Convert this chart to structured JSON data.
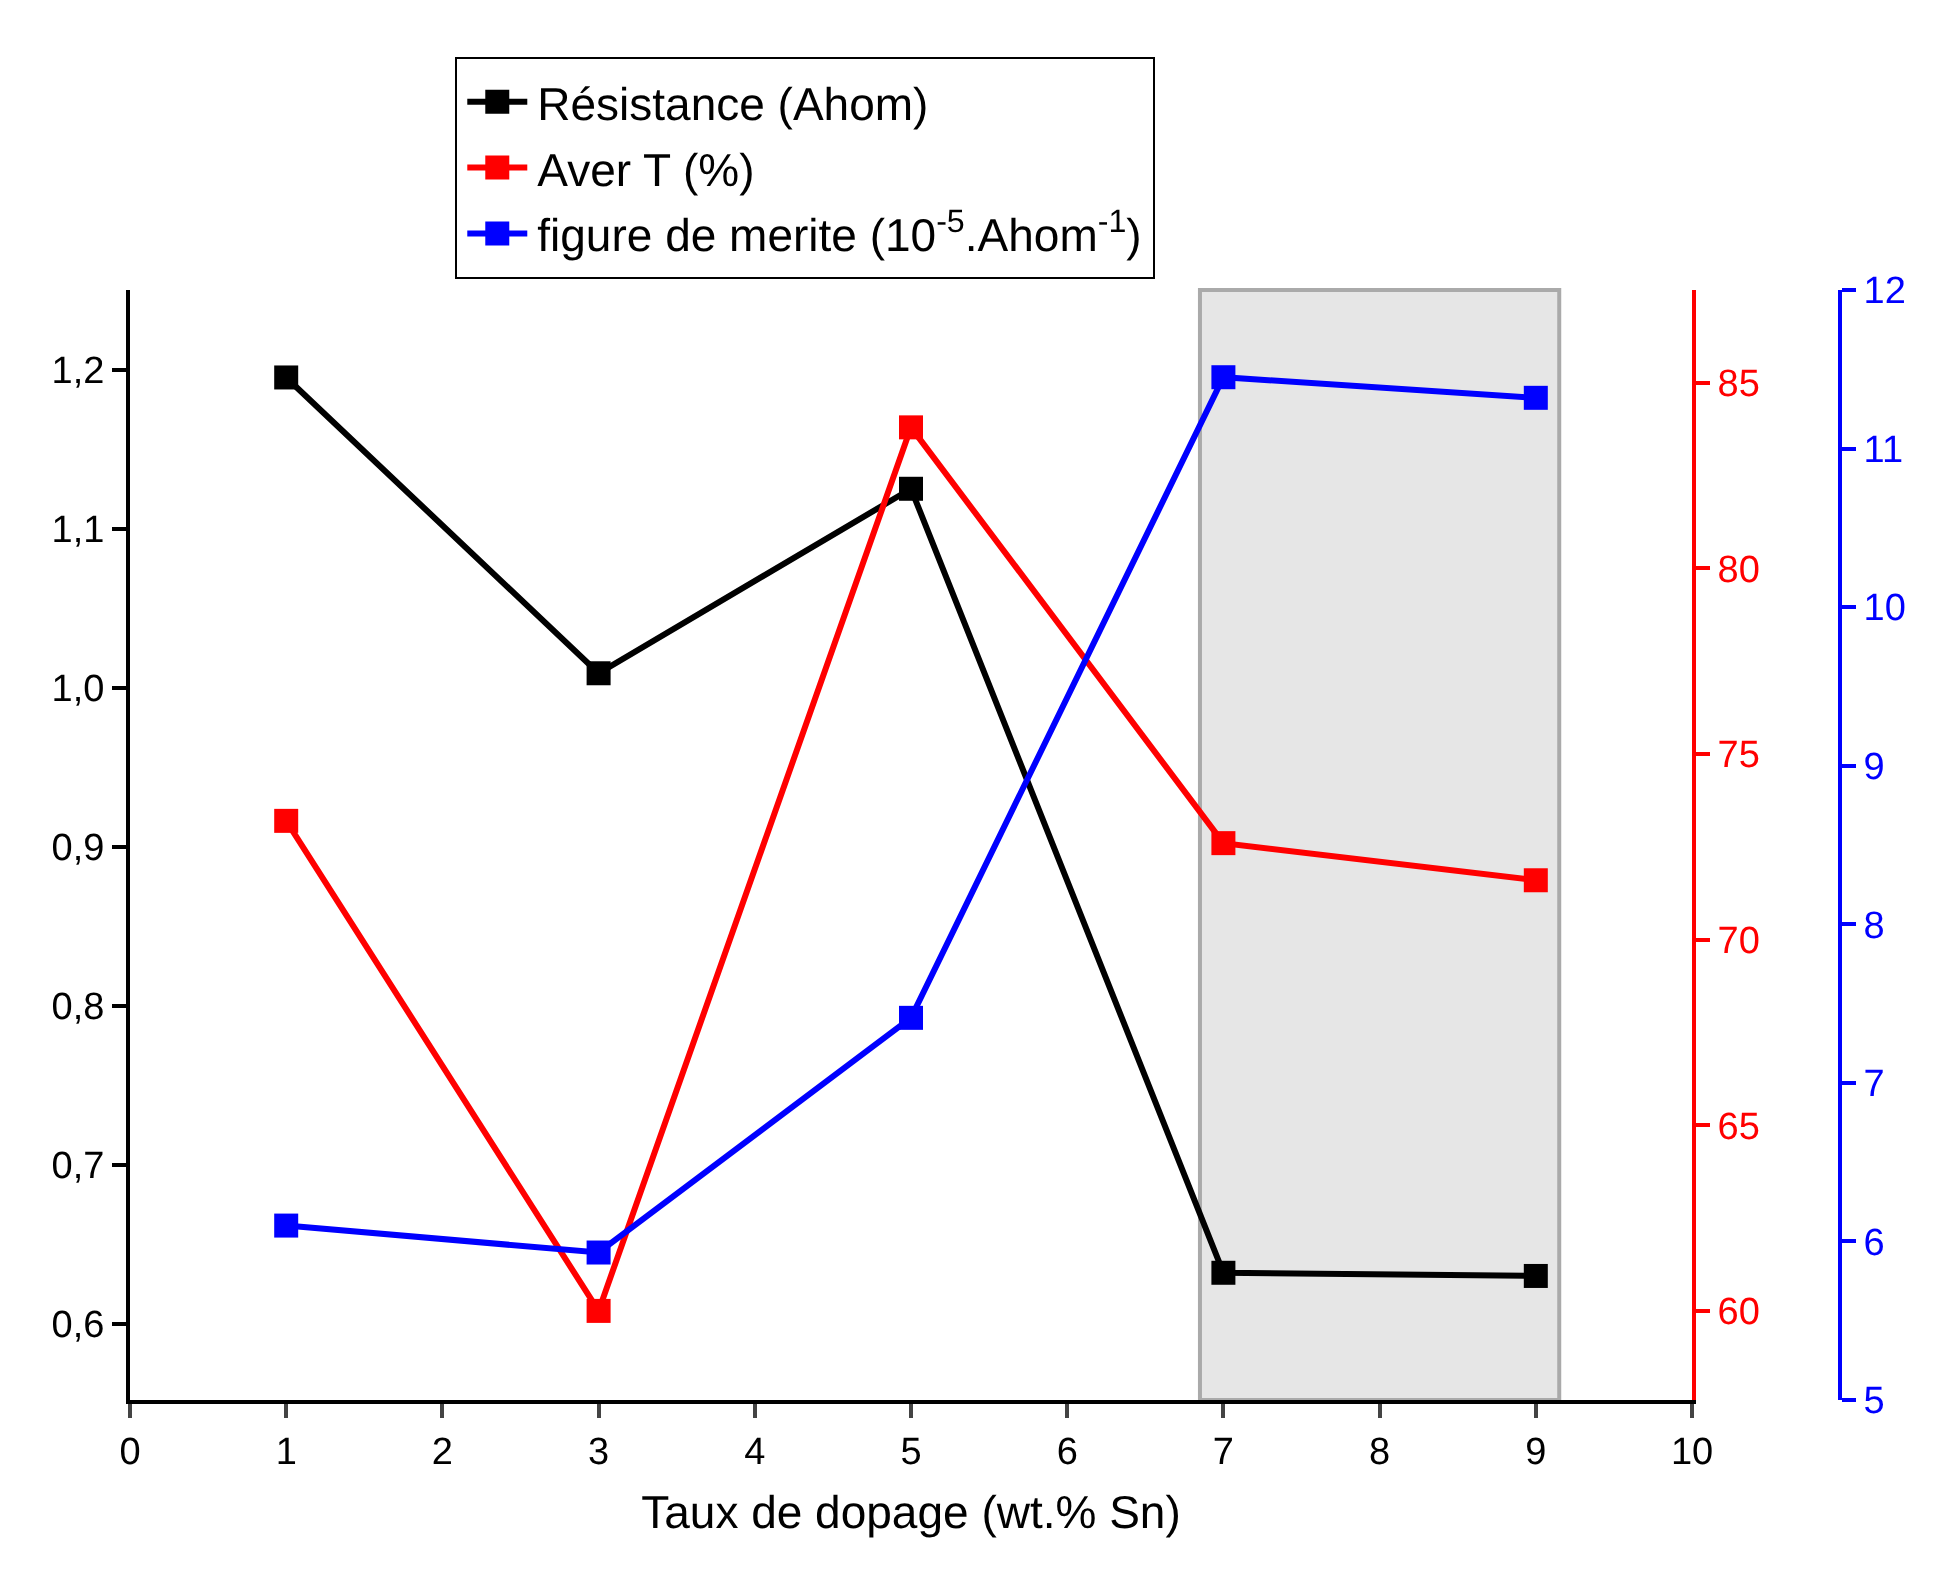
{
  "chart_data": {
    "type": "line",
    "xlabel": "Taux de dopage (wt.% Sn)",
    "x": [
      1,
      3,
      5,
      7,
      9
    ],
    "series": [
      {
        "name": "Résistance (Ahom)",
        "color": "#000000",
        "values": [
          1.195,
          1.009,
          1.125,
          0.632,
          0.63
        ]
      },
      {
        "name": "Aver T (%)",
        "color": "#ff0000",
        "values": [
          73.2,
          60,
          83.8,
          72.6,
          71.6
        ],
        "axis": "y2"
      },
      {
        "name": "figure de merite (10$^{-5}$.Ahom$^{-1}$)",
        "color": "#0000ff",
        "values": [
          6.1,
          5.93,
          7.41,
          11.45,
          11.32
        ],
        "axis": "y3"
      }
    ],
    "xlim": [
      0,
      10
    ],
    "xticks": [
      0,
      1,
      2,
      3,
      4,
      5,
      6,
      7,
      8,
      9,
      10
    ],
    "ylim": [
      0.552,
      1.25
    ],
    "yticks": [
      {
        "value": 0.6,
        "label": "0,6"
      },
      {
        "value": 0.7,
        "label": "0,7"
      },
      {
        "value": 0.8,
        "label": "0,8"
      },
      {
        "value": 0.9,
        "label": "0,9"
      },
      {
        "value": 1.0,
        "label": "1,0"
      },
      {
        "value": 1.1,
        "label": "1,1"
      },
      {
        "value": 1.2,
        "label": "1,2"
      }
    ],
    "y2lim": [
      57.6,
      87.5
    ],
    "y2ticks": [
      60,
      65,
      70,
      75,
      80,
      85
    ],
    "y3lim": [
      5,
      12
    ],
    "y3ticks": [
      5,
      6,
      7,
      8,
      9,
      10,
      11,
      12
    ],
    "bands": [
      {
        "axis": "x",
        "from": 6.85,
        "to": 9.15,
        "color": "#e6e6e6"
      }
    ],
    "marker": "square",
    "line_style": "solid",
    "grid": false,
    "legend": "top"
  }
}
